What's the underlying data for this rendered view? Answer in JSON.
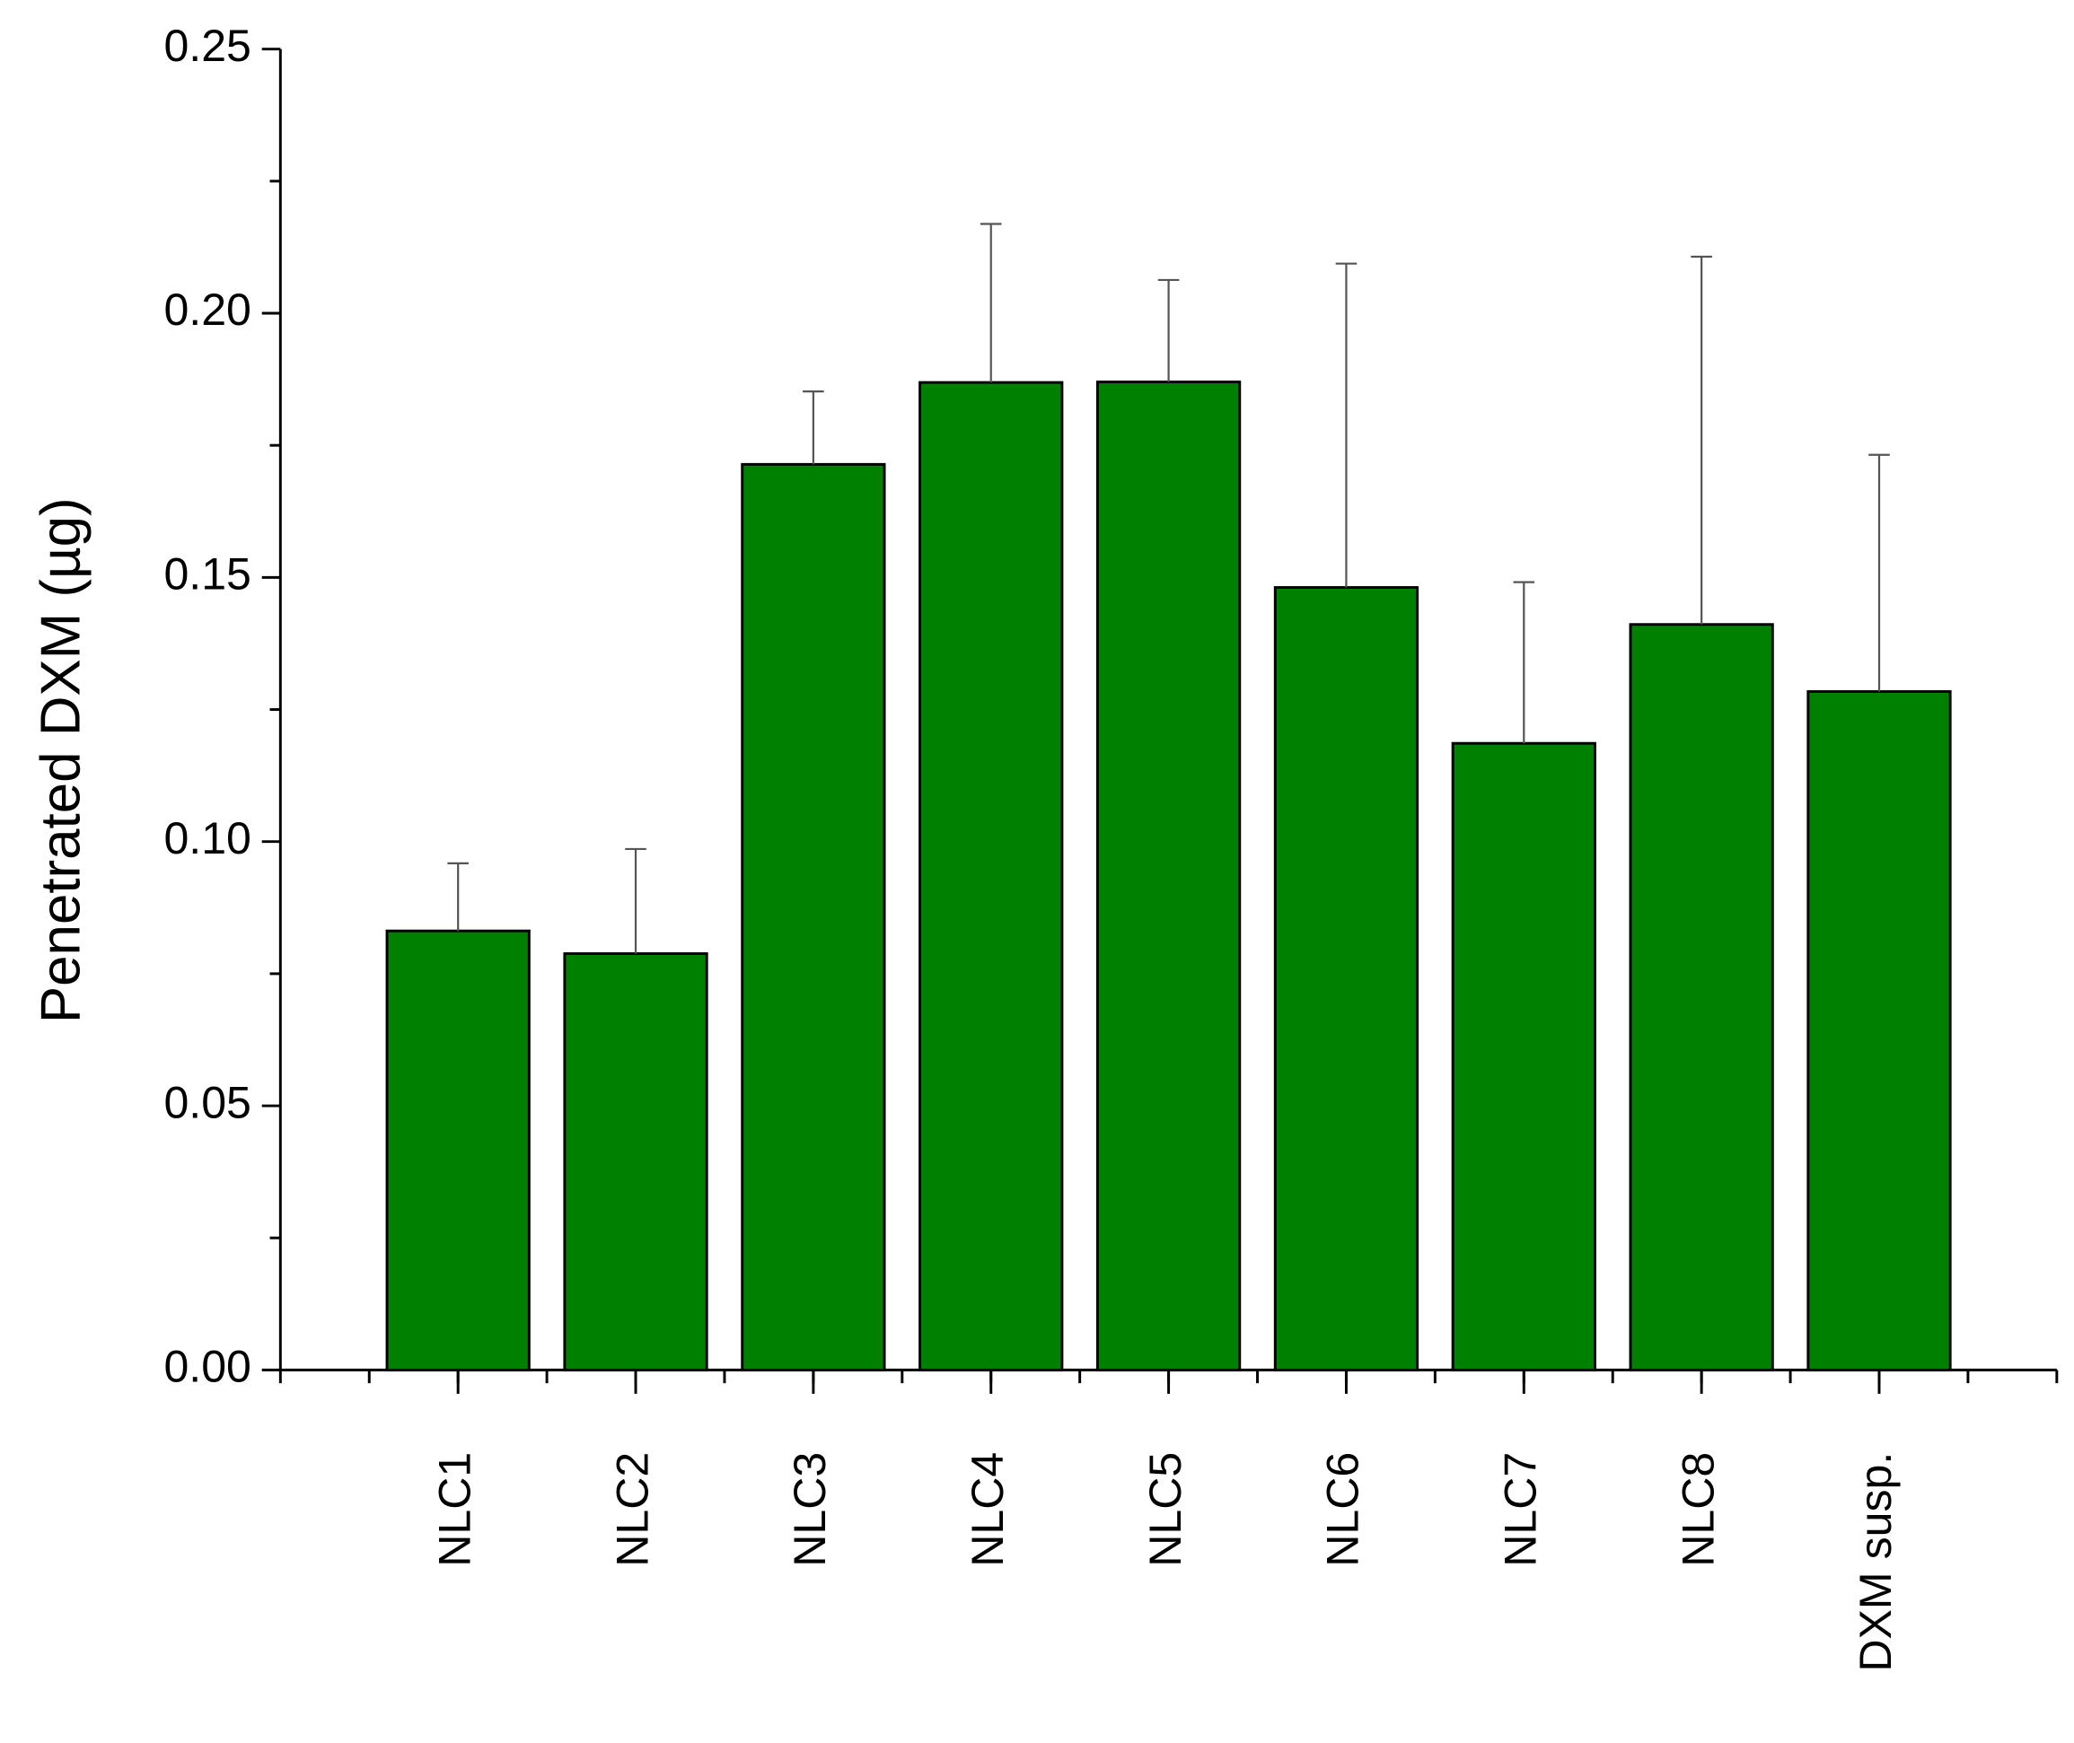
{
  "chart_data": {
    "type": "bar",
    "ylabel": "Penetrated DXM (µg)",
    "categories": [
      "NLC1",
      "NLC2",
      "NLC3",
      "NLC4",
      "NLC5",
      "NLC6",
      "NLC7",
      "NLC8",
      "DXM susp."
    ],
    "values": [
      0.0831,
      0.0788,
      0.1714,
      0.1869,
      0.187,
      0.1481,
      0.1186,
      0.1411,
      0.1284
    ],
    "errors": [
      0.0128,
      0.0198,
      0.0138,
      0.03,
      0.0193,
      0.0613,
      0.0305,
      0.0696,
      0.0448
    ],
    "color": "#008000",
    "ylim": [
      0,
      0.25
    ],
    "yticks": [
      {
        "value": 0,
        "label": "0.00"
      },
      {
        "value": 0.05,
        "label": "0.05"
      },
      {
        "value": 0.1,
        "label": "0.10"
      },
      {
        "value": 0.15,
        "label": "0.15"
      },
      {
        "value": 0.2,
        "label": "0.20"
      },
      {
        "value": 0.25,
        "label": "0.25"
      }
    ],
    "grid": false
  }
}
